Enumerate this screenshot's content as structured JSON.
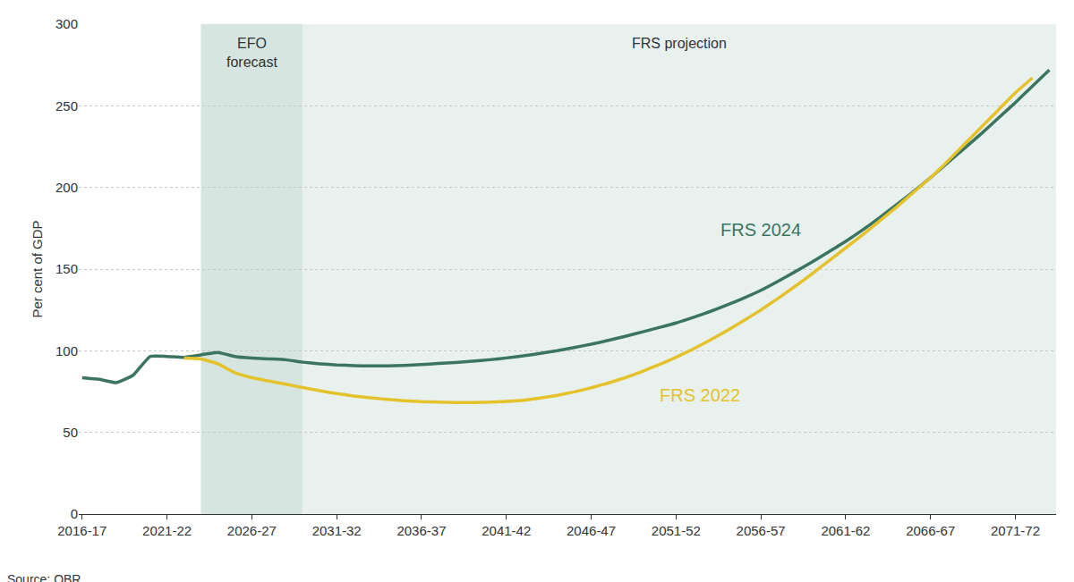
{
  "chart_data": {
    "type": "line",
    "y_label": "Per cent of GDP",
    "source": "Source: OBR",
    "categories": [
      "2016-17",
      null,
      null,
      null,
      null,
      "2021-22",
      null,
      null,
      null,
      null,
      "2026-27",
      null,
      null,
      null,
      null,
      "2031-32",
      null,
      null,
      null,
      null,
      "2036-37",
      null,
      null,
      null,
      null,
      "2041-42",
      null,
      null,
      null,
      null,
      "2046-47",
      null,
      null,
      null,
      null,
      "2051-52",
      null,
      null,
      null,
      null,
      "2056-57",
      null,
      null,
      null,
      null,
      "2061-62",
      null,
      null,
      null,
      null,
      "2066-67",
      null,
      null,
      null,
      null,
      "2071-72",
      null,
      null
    ],
    "series": [
      {
        "name": "FRS 2024",
        "color": "#3b7562",
        "label_x": 40,
        "label_y": 174,
        "values": [
          83.5,
          82.5,
          80.5,
          85,
          96.5,
          96.5,
          96,
          97.5,
          99,
          96.5,
          95.5,
          95,
          94.5,
          93,
          92,
          91.3,
          90.9,
          90.7,
          90.7,
          91,
          91.5,
          92.2,
          92.8,
          93.6,
          94.5,
          95.6,
          96.9,
          98.4,
          100,
          102,
          104,
          106.3,
          108.8,
          111.5,
          114.2,
          117,
          120.4,
          124,
          128,
          132.3,
          137,
          142.5,
          148.3,
          154.3,
          160.6,
          167,
          174,
          181.5,
          189.5,
          197.5,
          206,
          215,
          224,
          233,
          242.5,
          252,
          262,
          272
        ]
      },
      {
        "name": "FRS 2022",
        "color": "#e5c22b",
        "label_x": 36.4,
        "label_y": 73,
        "values": [
          null,
          null,
          null,
          null,
          null,
          null,
          95.5,
          95,
          92,
          86.5,
          83.5,
          81.5,
          79.5,
          77.5,
          75.5,
          73.8,
          72.3,
          71.2,
          70.2,
          69.4,
          68.8,
          68.5,
          68.3,
          68.3,
          68.5,
          69,
          69.7,
          71,
          72.7,
          74.8,
          77.3,
          80.2,
          83.5,
          87.3,
          91.5,
          96,
          101,
          106.5,
          112.3,
          118.5,
          125,
          132,
          139.3,
          147,
          155,
          163,
          171,
          179.5,
          188,
          197,
          206,
          216,
          226.5,
          237,
          247.5,
          258,
          267,
          null
        ]
      }
    ],
    "regions": [
      {
        "label": "EFO forecast",
        "start": 7,
        "end": 13,
        "color": "#d6e5e0"
      },
      {
        "label": "FRS projection",
        "start": 13,
        "end": 57,
        "color": "#e9f1ef"
      }
    ],
    "ylim": [
      0,
      300
    ],
    "yticks": [
      0,
      50,
      100,
      150,
      200,
      250,
      300
    ],
    "grid": true
  }
}
